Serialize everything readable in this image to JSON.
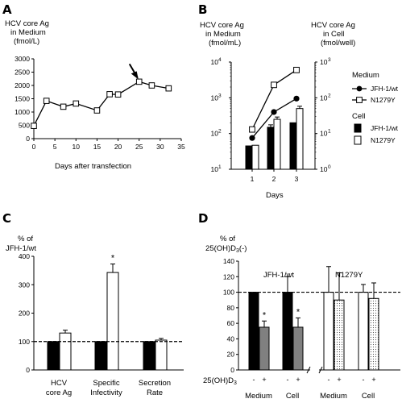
{
  "chart_data": [
    {
      "panel": "A",
      "type": "line",
      "ylabel_lines": [
        "HCV core Ag",
        "in Medium",
        "(fmol/L)"
      ],
      "xlabel": "Days after transfection",
      "xlim": [
        0,
        35
      ],
      "ylim": [
        0,
        3000
      ],
      "xticks": [
        "0",
        "5",
        "10",
        "15",
        "20",
        "25",
        "30",
        "35"
      ],
      "yticks": [
        "0",
        "500",
        "1000",
        "1500",
        "2000",
        "2500",
        "3000"
      ],
      "x": [
        0,
        3,
        7,
        10,
        15,
        18,
        20,
        25,
        28,
        32
      ],
      "y": [
        480,
        1420,
        1200,
        1320,
        1060,
        1670,
        1660,
        2140,
        2000,
        1890
      ],
      "annotation": "arrow at day 25"
    },
    {
      "panel": "B",
      "type": "bar+line",
      "ylabel_left_lines": [
        "HCV core Ag",
        "in Medium",
        "(fmol/mL)"
      ],
      "ylabel_right_lines": [
        "HCV core Ag",
        "in Cell",
        "(fmol/well)"
      ],
      "xlabel": "Days",
      "categories": [
        "1",
        "2",
        "3"
      ],
      "left_axis": {
        "scale": "log",
        "ylim": [
          10,
          10000
        ],
        "ticks": [
          {
            "base": "10",
            "exp": "1"
          },
          {
            "base": "10",
            "exp": "2"
          },
          {
            "base": "10",
            "exp": "3"
          },
          {
            "base": "10",
            "exp": "4"
          }
        ]
      },
      "right_axis": {
        "scale": "log",
        "ylim": [
          1,
          1000
        ],
        "ticks": [
          {
            "base": "10",
            "exp": "0"
          },
          {
            "base": "10",
            "exp": "1"
          },
          {
            "base": "10",
            "exp": "2"
          },
          {
            "base": "10",
            "exp": "3"
          }
        ]
      },
      "legend_medium_title": "Medium",
      "legend_cell_title": "Cell",
      "medium_series": [
        {
          "name": "JFH-1/wt",
          "marker": "filled-circle",
          "values": [
            75,
            400,
            950
          ]
        },
        {
          "name": "N1279Y",
          "marker": "open-square",
          "values": [
            130,
            2300,
            6000
          ]
        }
      ],
      "cell_series": [
        {
          "name": "JFH-1/wt",
          "fill": "black",
          "values": [
            4.5,
            15,
            20
          ]
        },
        {
          "name": "N1279Y",
          "fill": "white",
          "values": [
            4.7,
            25,
            50
          ]
        }
      ],
      "error_bars_on_bars": [
        0,
        2.5,
        0,
        0,
        4,
        8
      ]
    },
    {
      "panel": "C",
      "type": "bar",
      "ylabel_lines": [
        "% of",
        "JFH-1/wt"
      ],
      "ylim": [
        0,
        400
      ],
      "yticks": [
        "0",
        "100",
        "200",
        "300",
        "400"
      ],
      "groups": [
        [
          "HCV",
          "core Ag"
        ],
        [
          "Specific",
          "Infectivity"
        ],
        [
          "Secretion",
          "Rate"
        ]
      ],
      "series": [
        {
          "name": "JFH-1/wt",
          "fill": "black",
          "values": [
            100,
            100,
            100
          ]
        },
        {
          "name": "N1279Y",
          "fill": "white",
          "values": [
            130,
            343,
            105
          ]
        }
      ],
      "errors": [
        10,
        30,
        6
      ],
      "significance": [
        "",
        "*",
        ""
      ],
      "reference_line": 100
    },
    {
      "panel": "D",
      "type": "bar",
      "ylabel_lines": [
        "% of",
        "25(OH)D3(-)"
      ],
      "ylim": [
        0,
        140
      ],
      "yticks": [
        "0",
        "20",
        "40",
        "60",
        "80",
        "100",
        "120",
        "140"
      ],
      "group_titles": [
        "JFH-1/wt",
        "N1279Y"
      ],
      "treatment_label": "25(OH)D3",
      "treatment_symbols": [
        "-",
        "+"
      ],
      "categories": [
        "Medium",
        "Cell",
        "Medium",
        "Cell"
      ],
      "bars": [
        {
          "group": "JFH-1/wt",
          "category": "Medium",
          "treatment": "-",
          "value": 100,
          "error": 0,
          "fill": "black"
        },
        {
          "group": "JFH-1/wt",
          "category": "Medium",
          "treatment": "+",
          "value": 55,
          "error": 8,
          "fill": "gray",
          "sig": "*"
        },
        {
          "group": "JFH-1/wt",
          "category": "Cell",
          "treatment": "-",
          "value": 100,
          "error": 20,
          "fill": "black"
        },
        {
          "group": "JFH-1/wt",
          "category": "Cell",
          "treatment": "+",
          "value": 55,
          "error": 12,
          "fill": "gray",
          "sig": "*"
        },
        {
          "group": "N1279Y",
          "category": "Medium",
          "treatment": "-",
          "value": 100,
          "error": 33,
          "fill": "white"
        },
        {
          "group": "N1279Y",
          "category": "Medium",
          "treatment": "+",
          "value": 90,
          "error": 35,
          "fill": "dotted"
        },
        {
          "group": "N1279Y",
          "category": "Cell",
          "treatment": "-",
          "value": 100,
          "error": 10,
          "fill": "white"
        },
        {
          "group": "N1279Y",
          "category": "Cell",
          "treatment": "+",
          "value": 92,
          "error": 20,
          "fill": "dotted"
        }
      ],
      "reference_line": 100
    }
  ],
  "panel_labels": [
    "A",
    "B",
    "C",
    "D"
  ],
  "colors": {
    "black": "#000000",
    "gray": "#808080",
    "white": "#ffffff"
  }
}
